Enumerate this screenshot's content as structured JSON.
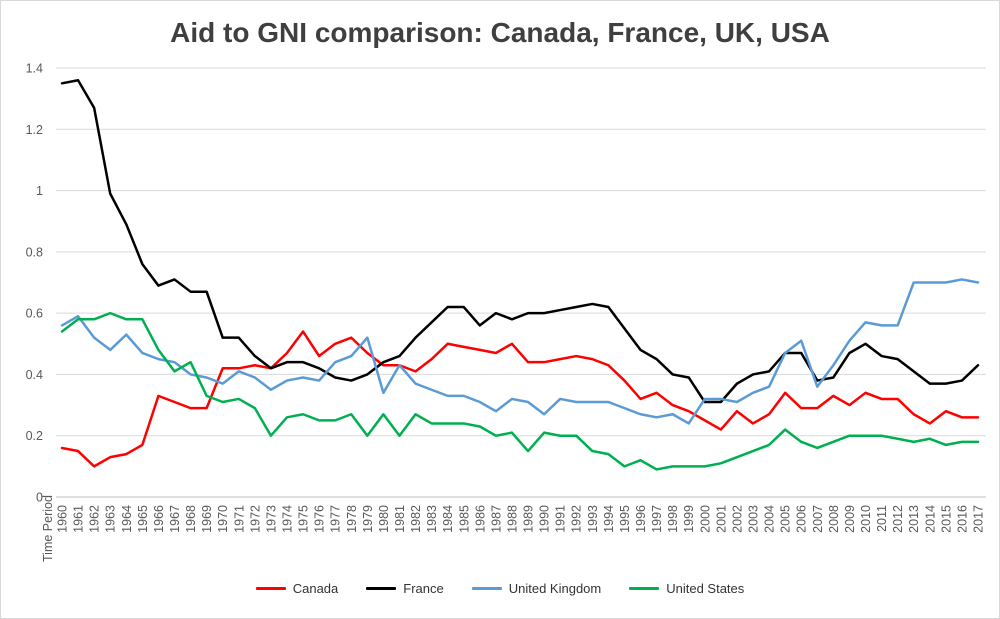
{
  "chart_data": {
    "type": "line",
    "title": "Aid to GNI comparison: Canada, France, UK, USA",
    "xlabel": "Time Period",
    "ylabel": "",
    "ylim": [
      0,
      1.4
    ],
    "y_ticks": [
      0,
      0.2,
      0.4,
      0.6,
      0.8,
      1,
      1.2,
      1.4
    ],
    "y_tick_labels": [
      "0",
      "0.2",
      "0.4",
      "0.6",
      "0.8",
      "1",
      "1.2",
      "1.4"
    ],
    "grid": "horizontal",
    "grid_color": "#d9d9d9",
    "axis_color": "#bfbfbf",
    "legend_position": "bottom",
    "categories": [
      "1960",
      "1961",
      "1962",
      "1963",
      "1964",
      "1965",
      "1966",
      "1967",
      "1968",
      "1969",
      "1970",
      "1971",
      "1972",
      "1973",
      "1974",
      "1975",
      "1976",
      "1977",
      "1978",
      "1979",
      "1980",
      "1981",
      "1982",
      "1983",
      "1984",
      "1985",
      "1986",
      "1987",
      "1988",
      "1989",
      "1990",
      "1991",
      "1992",
      "1993",
      "1994",
      "1995",
      "1996",
      "1997",
      "1998",
      "1999",
      "2000",
      "2001",
      "2002",
      "2003",
      "2004",
      "2005",
      "2006",
      "2007",
      "2008",
      "2009",
      "2010",
      "2011",
      "2012",
      "2013",
      "2014",
      "2015",
      "2016",
      "2017"
    ],
    "series": [
      {
        "name": "Canada",
        "color": "#ff0000",
        "values": [
          0.16,
          0.15,
          0.1,
          0.13,
          0.14,
          0.17,
          0.33,
          0.31,
          0.29,
          0.29,
          0.42,
          0.42,
          0.43,
          0.42,
          0.47,
          0.54,
          0.46,
          0.5,
          0.52,
          0.47,
          0.43,
          0.43,
          0.41,
          0.45,
          0.5,
          0.49,
          0.48,
          0.47,
          0.5,
          0.44,
          0.44,
          0.45,
          0.46,
          0.45,
          0.43,
          0.38,
          0.32,
          0.34,
          0.3,
          0.28,
          0.25,
          0.22,
          0.28,
          0.24,
          0.27,
          0.34,
          0.29,
          0.29,
          0.33,
          0.3,
          0.34,
          0.32,
          0.32,
          0.27,
          0.24,
          0.28,
          0.26,
          0.26
        ]
      },
      {
        "name": "France",
        "color": "#000000",
        "values": [
          1.35,
          1.36,
          1.27,
          0.99,
          0.89,
          0.76,
          0.69,
          0.71,
          0.67,
          0.67,
          0.52,
          0.52,
          0.46,
          0.42,
          0.44,
          0.44,
          0.42,
          0.39,
          0.38,
          0.4,
          0.44,
          0.46,
          0.52,
          0.57,
          0.62,
          0.62,
          0.56,
          0.6,
          0.58,
          0.6,
          0.6,
          0.61,
          0.62,
          0.63,
          0.62,
          0.55,
          0.48,
          0.45,
          0.4,
          0.39,
          0.31,
          0.31,
          0.37,
          0.4,
          0.41,
          0.47,
          0.47,
          0.38,
          0.39,
          0.47,
          0.5,
          0.46,
          0.45,
          0.41,
          0.37,
          0.37,
          0.38,
          0.43
        ]
      },
      {
        "name": "United Kingdom",
        "color": "#5b9bd5",
        "values": [
          0.56,
          0.59,
          0.52,
          0.48,
          0.53,
          0.47,
          0.45,
          0.44,
          0.4,
          0.39,
          0.37,
          0.41,
          0.39,
          0.35,
          0.38,
          0.39,
          0.38,
          0.44,
          0.46,
          0.52,
          0.34,
          0.43,
          0.37,
          0.35,
          0.33,
          0.33,
          0.31,
          0.28,
          0.32,
          0.31,
          0.27,
          0.32,
          0.31,
          0.31,
          0.31,
          0.29,
          0.27,
          0.26,
          0.27,
          0.24,
          0.32,
          0.32,
          0.31,
          0.34,
          0.36,
          0.47,
          0.51,
          0.36,
          0.43,
          0.51,
          0.57,
          0.56,
          0.56,
          0.7,
          0.7,
          0.7,
          0.71,
          0.7
        ]
      },
      {
        "name": "United States",
        "color": "#00b050",
        "values": [
          0.54,
          0.58,
          0.58,
          0.6,
          0.58,
          0.58,
          0.48,
          0.41,
          0.44,
          0.33,
          0.31,
          0.32,
          0.29,
          0.2,
          0.26,
          0.27,
          0.25,
          0.25,
          0.27,
          0.2,
          0.27,
          0.2,
          0.27,
          0.24,
          0.24,
          0.24,
          0.23,
          0.2,
          0.21,
          0.15,
          0.21,
          0.2,
          0.2,
          0.15,
          0.14,
          0.1,
          0.12,
          0.09,
          0.1,
          0.1,
          0.1,
          0.11,
          0.13,
          0.15,
          0.17,
          0.22,
          0.18,
          0.16,
          0.18,
          0.2,
          0.2,
          0.2,
          0.19,
          0.18,
          0.19,
          0.17,
          0.18,
          0.18
        ]
      }
    ]
  }
}
